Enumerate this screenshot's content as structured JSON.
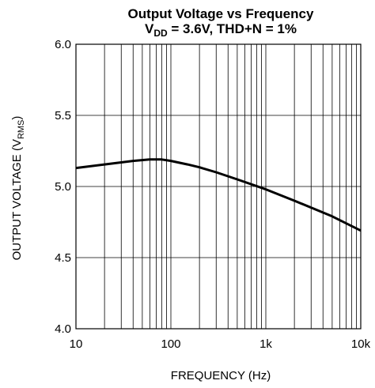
{
  "chart_data": {
    "type": "line",
    "title": "Output Voltage vs Frequency",
    "subtitle": {
      "prefix": "V",
      "subscript": "DD",
      "rest": " = 3.6V, THD+N = 1%"
    },
    "xlabel": "FREQUENCY (Hz)",
    "ylabel": {
      "prefix": "OUTPUT VOLTAGE (V",
      "subscript": "RMS",
      "suffix": ")"
    },
    "x_scale": "log",
    "xlim": [
      10,
      10000
    ],
    "ylim": [
      4.0,
      6.0
    ],
    "x_ticks": [
      {
        "value": 10,
        "label": "10"
      },
      {
        "value": 100,
        "label": "100"
      },
      {
        "value": 1000,
        "label": "1k"
      },
      {
        "value": 10000,
        "label": "10k"
      }
    ],
    "y_ticks": [
      {
        "value": 4.0,
        "label": "4.0"
      },
      {
        "value": 4.5,
        "label": "4.5"
      },
      {
        "value": 5.0,
        "label": "5.0"
      },
      {
        "value": 5.5,
        "label": "5.5"
      },
      {
        "value": 6.0,
        "label": "6.0"
      }
    ],
    "grid": true,
    "series": [
      {
        "color": "#000000",
        "x": [
          10,
          20,
          40,
          60,
          80,
          100,
          150,
          200,
          300,
          500,
          1000,
          2000,
          5000,
          10000
        ],
        "y": [
          5.13,
          5.155,
          5.18,
          5.19,
          5.19,
          5.18,
          5.155,
          5.135,
          5.1,
          5.05,
          4.98,
          4.9,
          4.79,
          4.69
        ]
      }
    ]
  }
}
